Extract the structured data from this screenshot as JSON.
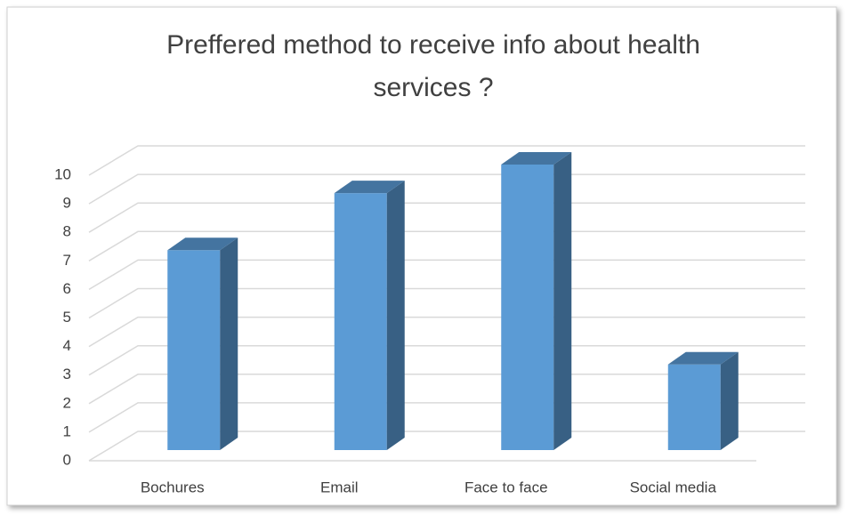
{
  "chart_data": {
    "type": "bar3d",
    "title": "Preffered method to receive info about health services ?",
    "categories": [
      "Bochures",
      "Email",
      "Face to face",
      "Social media"
    ],
    "values": [
      7,
      9,
      10,
      3
    ],
    "color": "#5b9bd5",
    "ylim": [
      0,
      10
    ],
    "yticks": [
      0,
      1,
      2,
      3,
      4,
      5,
      6,
      7,
      8,
      9,
      10
    ],
    "grid": true
  }
}
